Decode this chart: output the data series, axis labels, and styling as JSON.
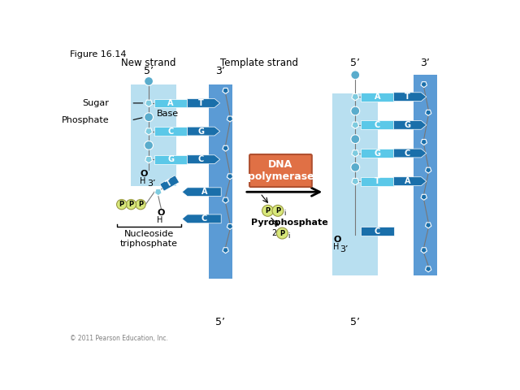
{
  "fig_label": "Figure 16.14",
  "title_new_strand": "New strand",
  "title_template_strand": "Template strand",
  "label_sugar": "Sugar",
  "label_phosphate": "Phosphate",
  "label_base": "Base",
  "label_nucleoside": "Nucleoside\ntriphosphate",
  "label_dna_poly": "DNA\npolymerase",
  "label_pyrophosphate": "Pyrophosphate",
  "copyright": "© 2011 Pearson Education, Inc.",
  "color_new_strand_bg": "#b8dff0",
  "color_template_strand_bg": "#5b9bd5",
  "color_template_strand_bg2": "#7ab8e0",
  "color_base_light": "#5bc8e8",
  "color_base_dark": "#1a6faa",
  "color_sugar": "#7ecbdf",
  "color_phosphate_ball": "#5aaccc",
  "color_phosphate_circle": "#d8e87a",
  "color_dna_box": "#e07045",
  "color_line": "#777777"
}
